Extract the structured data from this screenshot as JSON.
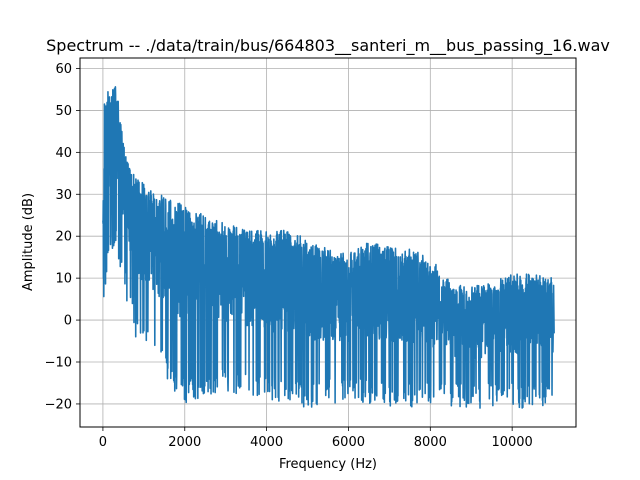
{
  "chart_data": {
    "type": "line",
    "title": "Spectrum -- ./data/train/bus/664803__santeri_m__bus_passing_16.wav",
    "xlabel": "Frequency (Hz)",
    "ylabel": "Amplitude (dB)",
    "xlim": [
      -560,
      11560
    ],
    "ylim": [
      -25.5,
      62.5
    ],
    "xticks": [
      0,
      2000,
      4000,
      6000,
      8000,
      10000
    ],
    "yticks": [
      -20,
      -10,
      0,
      10,
      20,
      30,
      40,
      50,
      60
    ],
    "grid": true,
    "series_color": "#1f77b4",
    "envelope": {
      "x": [
        0,
        40,
        100,
        200,
        300,
        500,
        800,
        1200,
        1600,
        2000,
        2500,
        3000,
        3500,
        4000,
        4500,
        5000,
        5500,
        6000,
        6500,
        7000,
        7500,
        8000,
        8500,
        9000,
        9500,
        10000,
        10500,
        11025
      ],
      "upper": [
        32,
        53,
        55,
        54,
        58,
        42,
        34,
        31,
        30,
        27,
        25,
        23,
        22,
        21,
        22,
        19,
        17,
        16,
        19,
        18,
        17,
        15,
        9,
        8,
        9,
        11,
        11,
        10
      ],
      "lower": [
        6,
        0,
        10,
        15,
        18,
        8,
        -4,
        -10,
        -15,
        -20,
        -18,
        -17,
        -18,
        -19,
        -20,
        -21,
        -20,
        -20,
        -20,
        -21,
        -21,
        -21,
        -21,
        -21,
        -21,
        -21,
        -21,
        -20
      ]
    }
  }
}
